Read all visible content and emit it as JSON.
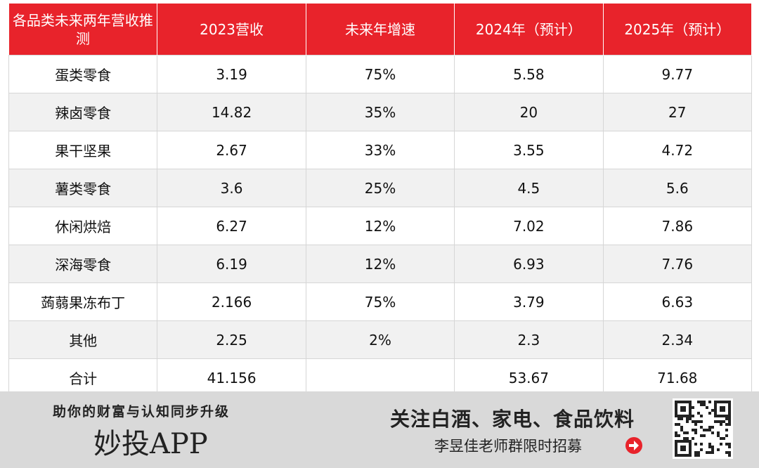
{
  "table": {
    "header": [
      "各品类未来两年营收推测",
      "2023营收",
      "未来年增速",
      "2024年（预计）",
      "2025年（预计）"
    ],
    "rows": [
      [
        "蛋类零食",
        "3.19",
        "75%",
        "5.58",
        "9.77"
      ],
      [
        "辣卤零食",
        "14.82",
        "35%",
        "20",
        "27"
      ],
      [
        "果干坚果",
        "2.67",
        "33%",
        "3.55",
        "4.72"
      ],
      [
        "薯类零食",
        "3.6",
        "25%",
        "4.5",
        "5.6"
      ],
      [
        "休闲烘焙",
        "6.27",
        "12%",
        "7.02",
        "7.86"
      ],
      [
        "深海零食",
        "6.19",
        "12%",
        "6.93",
        "7.76"
      ],
      [
        "蒟蒻果冻布丁",
        "2.166",
        "75%",
        "3.79",
        "6.63"
      ],
      [
        "其他",
        "2.25",
        "2%",
        "2.3",
        "2.34"
      ],
      [
        "合计",
        "41.156",
        null,
        "53.67",
        "71.68"
      ]
    ]
  },
  "banner": {
    "slogan": "助你的财富与认知同步升级",
    "app": "妙投APP",
    "headline": "关注白酒、家电、食品饮料",
    "subline": "李昱佳老师群限时招募"
  }
}
